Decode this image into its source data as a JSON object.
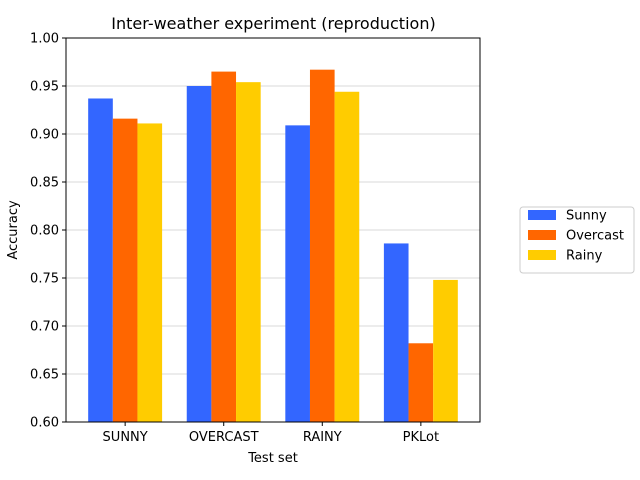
{
  "chart_data": {
    "type": "bar",
    "title": "Inter-weather experiment (reproduction)",
    "xlabel": "Test set",
    "ylabel": "Accuracy",
    "categories": [
      "SUNNY",
      "OVERCAST",
      "RAINY",
      "PKLot"
    ],
    "ylim": [
      0.6,
      1.0
    ],
    "yticks": [
      "0.60",
      "0.65",
      "0.70",
      "0.75",
      "0.80",
      "0.85",
      "0.90",
      "0.95",
      "1.00"
    ],
    "grid": "horizontal",
    "legend_position": "right",
    "series": [
      {
        "name": "Sunny",
        "color": "#3366ff",
        "values": [
          0.937,
          0.95,
          0.909,
          0.786
        ]
      },
      {
        "name": "Overcast",
        "color": "#ff6600",
        "values": [
          0.916,
          0.965,
          0.967,
          0.682
        ]
      },
      {
        "name": "Rainy",
        "color": "#ffcc00",
        "values": [
          0.911,
          0.954,
          0.944,
          0.748
        ]
      }
    ]
  }
}
